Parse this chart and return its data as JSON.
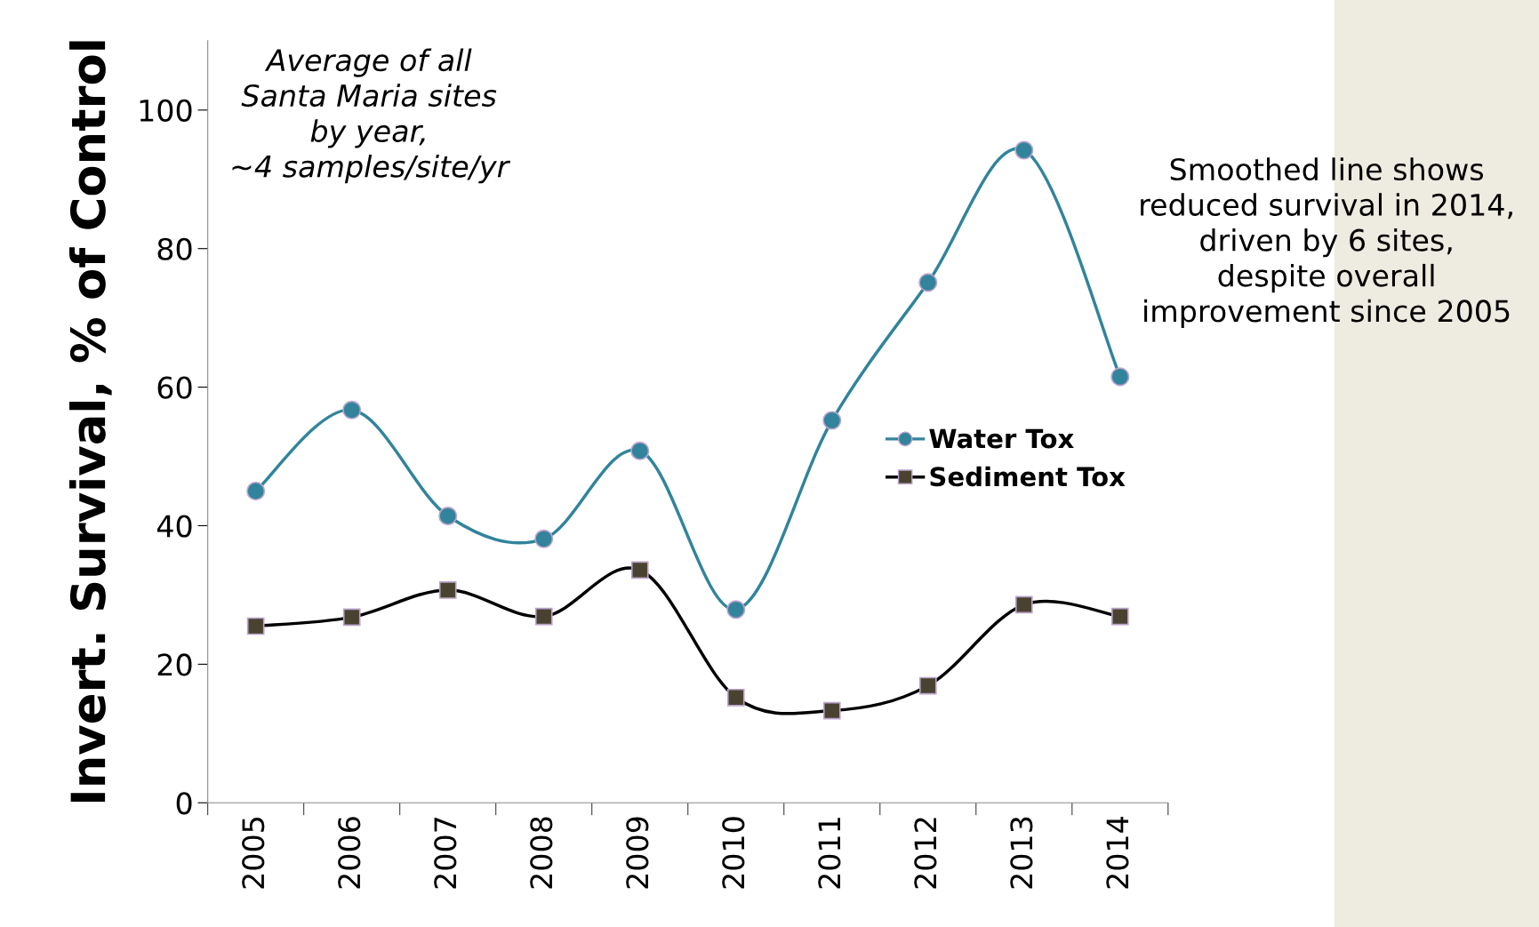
{
  "chart_data": {
    "type": "line",
    "ylabel": "Invert. Survival, % of Control",
    "categories": [
      "2005",
      "2006",
      "2007",
      "2008",
      "2009",
      "2010",
      "2011",
      "2012",
      "2013",
      "2014"
    ],
    "series": [
      {
        "name": "Water Tox",
        "color": "#31849b",
        "marker": "circle",
        "values": [
          45,
          56.7,
          41.4,
          38.1,
          50.8,
          27.9,
          55.2,
          75.1,
          94.2,
          61.5
        ]
      },
      {
        "name": "Sediment Tox",
        "color": "#4a4230",
        "marker": "square",
        "values": [
          25.5,
          26.8,
          30.7,
          26.9,
          33.6,
          15.2,
          13.3,
          16.9,
          28.6,
          26.9
        ]
      }
    ],
    "ylim": [
      0,
      110
    ],
    "yticks": [
      0,
      20,
      40,
      60,
      80,
      100
    ],
    "grid": false,
    "legend": "right",
    "line_style": "solid",
    "annotations": [
      "Average of all\nSanta Maria sites\nby year,\n~4 samples/site/yr",
      "Smoothed line shows\nreduced survival in 2014,\ndriven by 6 sites,\ndespite overall\nimprovement since 2005"
    ]
  }
}
